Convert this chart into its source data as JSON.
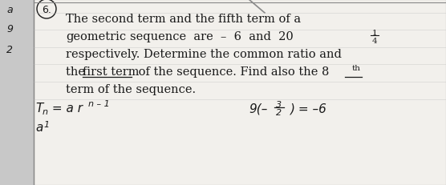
{
  "bg_color": "#c8c8c8",
  "paper_color": "#f2f0ec",
  "left_strip_color": "#c8c8c8",
  "number_label": "6.",
  "line1": "The second term and the fifth term of a",
  "line2_a": "geometric",
  "line2_b": "sequence  are  –  6  and  20",
  "frac_num": "1",
  "frac_den": "4",
  "line3": "respectively. Determine the common ratio and",
  "line4a": "the ",
  "line4b": "first term",
  "line4c": " of the sequence. Find also the 8",
  "line4_super": "th",
  "line5a": "term of the sequence.",
  "bottom_left_formula": "T",
  "bottom_sub_n": "n",
  "bottom_formula2": " = a r",
  "bottom_super": "n – 1",
  "bottom_right1": "9(–",
  "bottom_frac_num": "3",
  "bottom_frac_den": "2",
  "bottom_right2": ") = –6",
  "left_char_a": "a",
  "left_char_9": "9",
  "left_char_2": "2",
  "font_color": "#1a1a1a",
  "font_size": 10.5
}
